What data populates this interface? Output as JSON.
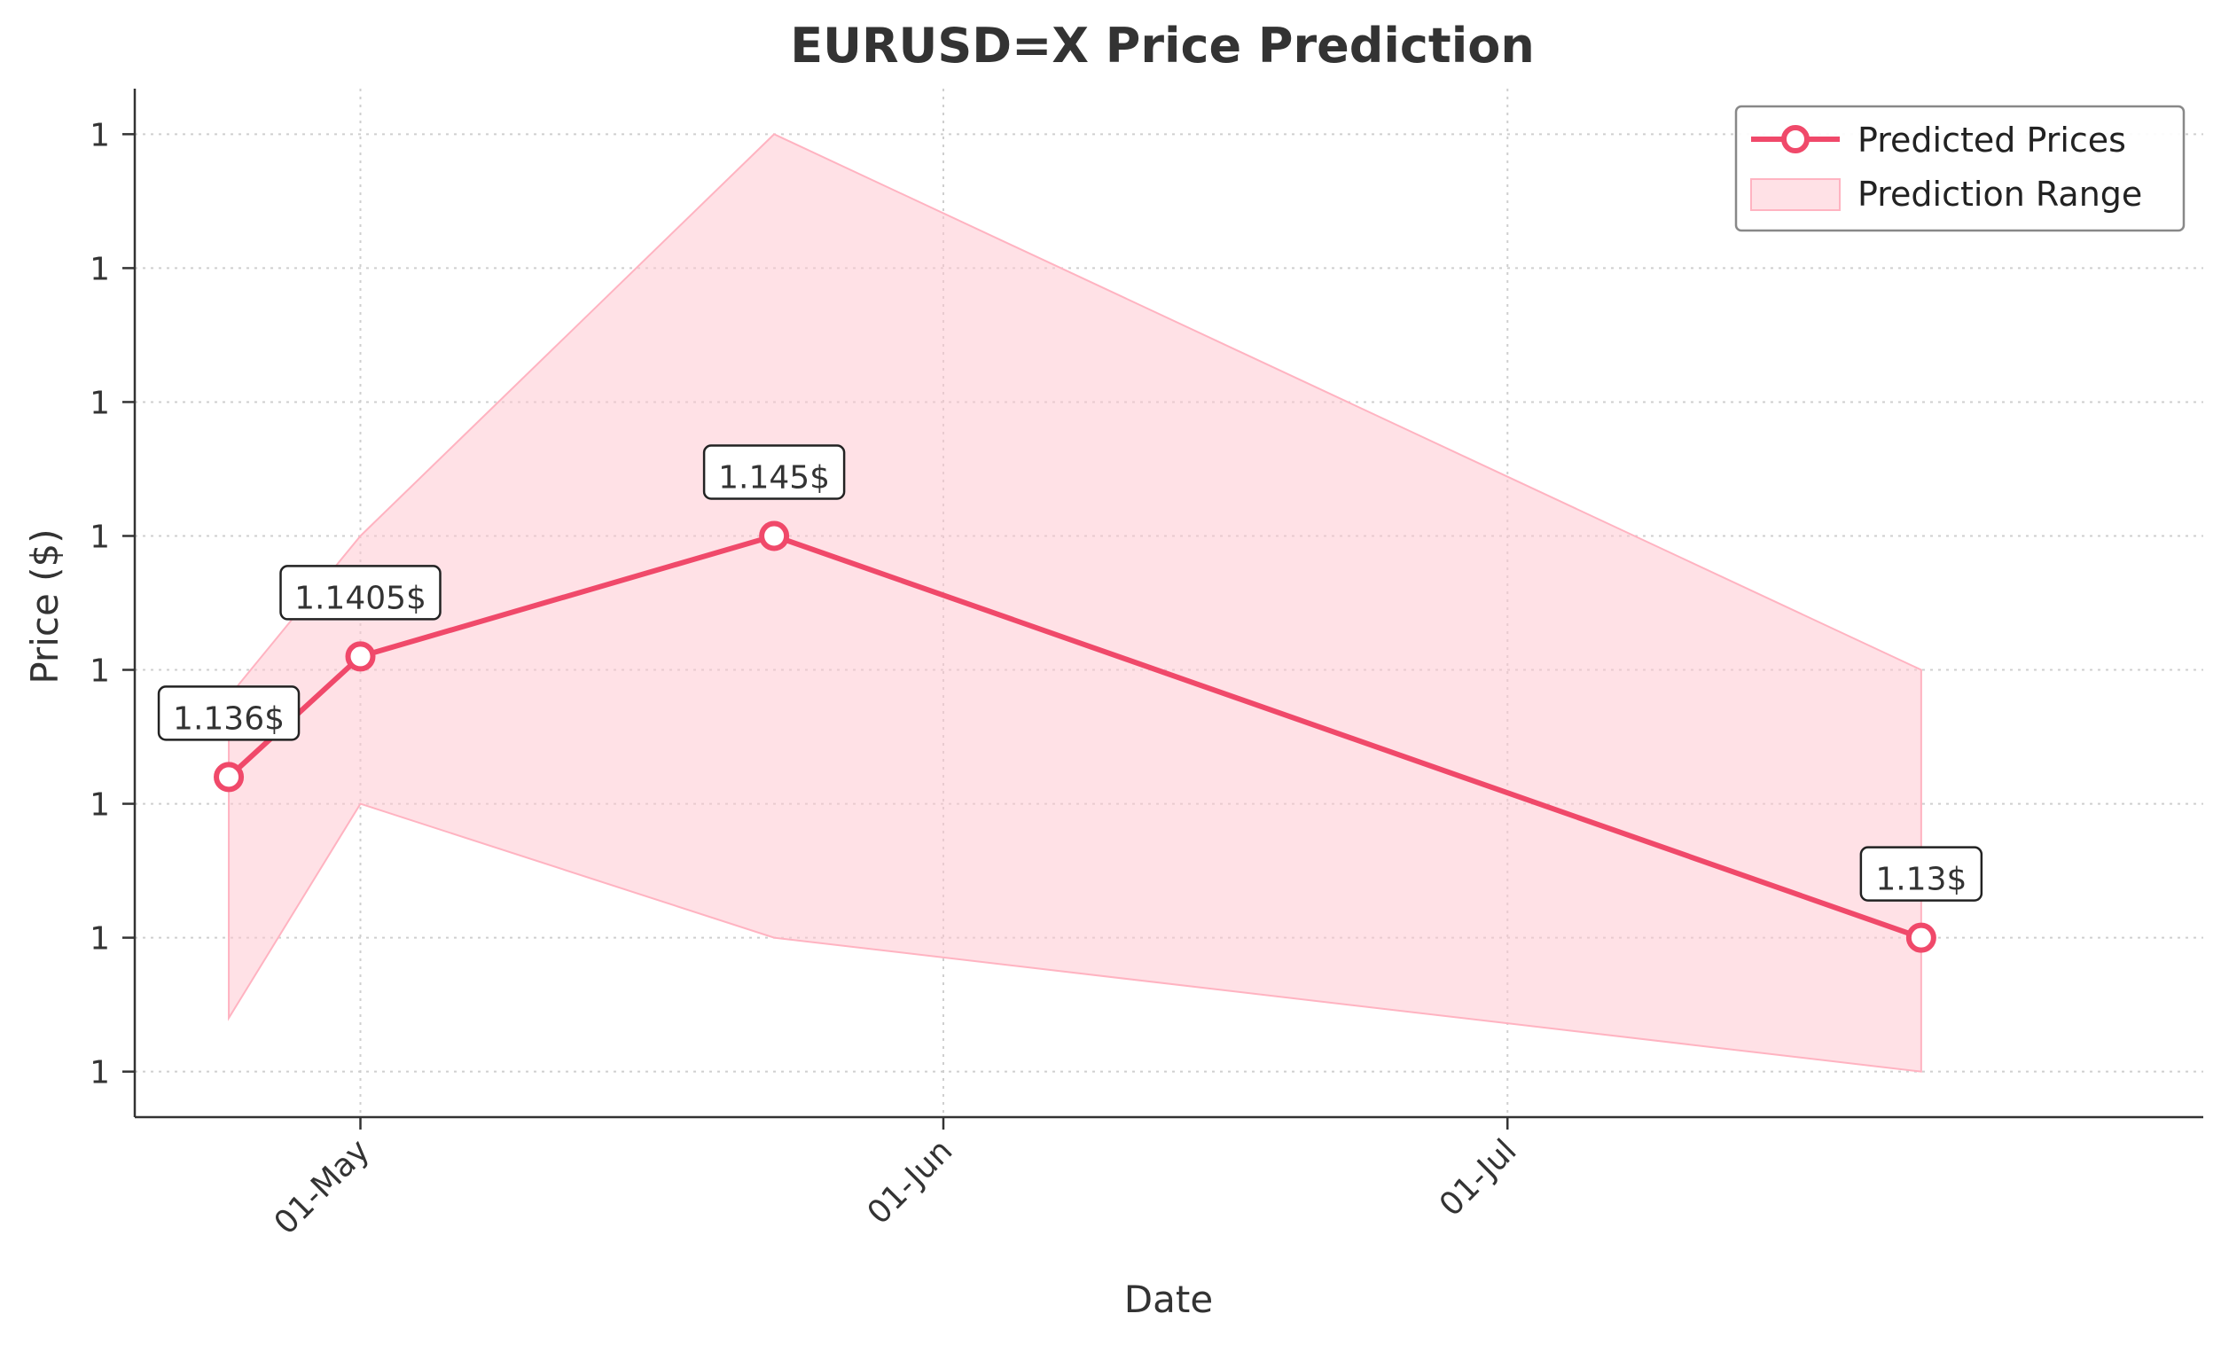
{
  "chart_data": {
    "type": "line",
    "title": "EURUSD=X Price Prediction",
    "xlabel": "Date",
    "ylabel": "Price ($)",
    "x_tick_labels": [
      "01-May",
      "01-Jun",
      "01-Jul"
    ],
    "x_ticks": [
      "2025-05-01",
      "2025-06-01",
      "2025-07-01"
    ],
    "y_tick_labels": [
      "1",
      "1",
      "1",
      "1",
      "1",
      "1",
      "1",
      "1"
    ],
    "y_ticks": [
      1.125,
      1.13,
      1.135,
      1.14,
      1.145,
      1.15,
      1.155,
      1.16
    ],
    "xlim": [
      "2025-04-19",
      "2025-08-07"
    ],
    "ylim": [
      1.1233,
      1.1617
    ],
    "grid": true,
    "legend_position": "top-right",
    "series": [
      {
        "name": "Predicted Prices",
        "type": "line",
        "color": "#F0496A",
        "x": [
          "2025-04-24",
          "2025-05-01",
          "2025-05-23",
          "2025-07-23"
        ],
        "y": [
          1.136,
          1.1405,
          1.145,
          1.13
        ],
        "labels": [
          "1.136$",
          "1.1405$",
          "1.145$",
          "1.13$"
        ]
      },
      {
        "name": "Prediction Range",
        "type": "area",
        "color": "#FFC8D2",
        "x": [
          "2025-04-24",
          "2025-05-01",
          "2025-05-23",
          "2025-07-23"
        ],
        "lower": [
          1.127,
          1.135,
          1.13,
          1.125
        ],
        "upper": [
          1.139,
          1.145,
          1.16,
          1.14
        ]
      }
    ]
  }
}
